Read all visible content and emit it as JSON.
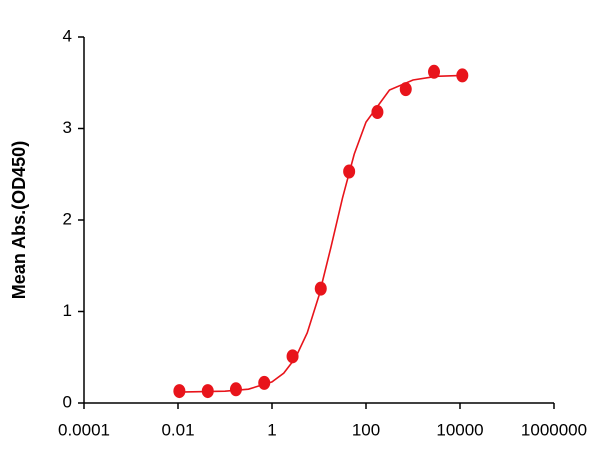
{
  "chart_data": {
    "type": "scatter",
    "y_label": "Mean Abs.(OD450)",
    "x": [
      0.0107,
      0.043,
      0.171,
      0.684,
      2.74,
      10.9,
      43.8,
      175,
      701,
      2800,
      11200
    ],
    "values": [
      0.13,
      0.13,
      0.15,
      0.22,
      0.51,
      1.25,
      2.53,
      3.18,
      3.43,
      3.62,
      3.58
    ],
    "color": "#e8141b",
    "curve": {
      "x": [
        0.0107,
        0.1,
        0.316,
        1,
        1.78,
        3.16,
        5.62,
        10,
        17.8,
        31.6,
        56.2,
        100,
        316,
        1000,
        3162,
        11200
      ],
      "values": [
        0.12,
        0.129,
        0.151,
        0.231,
        0.326,
        0.493,
        0.767,
        1.175,
        1.695,
        2.24,
        2.72,
        3.07,
        3.42,
        3.53,
        3.57,
        3.58
      ]
    },
    "xscale": "log",
    "xlim": [
      0.0001,
      1000000
    ],
    "xticks": [
      0.0001,
      0.01,
      1,
      100,
      10000,
      1000000
    ],
    "ylim": [
      0,
      4
    ],
    "yticks": [
      0,
      1,
      2,
      3,
      4
    ],
    "grid": false
  }
}
